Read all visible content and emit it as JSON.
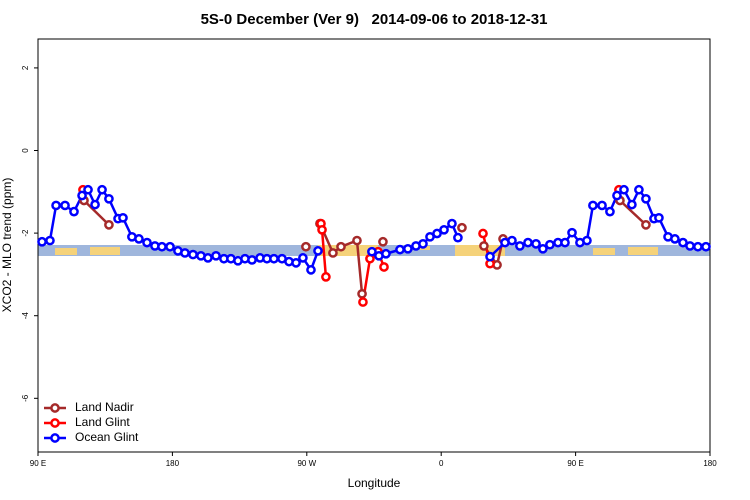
{
  "chart_data": {
    "type": "line",
    "title": "5S-0 December (Ver 9)   2014-09-06 to 2018-12-31",
    "x_label": "Longitude",
    "y_label": "XCO2 - MLO trend (ppm)",
    "xlim": [
      -270,
      180
    ],
    "xticks": [
      {
        "value": -270,
        "label": "90 E"
      },
      {
        "value": -180,
        "label": "180"
      },
      {
        "value": -90,
        "label": "90 W"
      },
      0,
      {
        "value": 90,
        "label": "90 E"
      },
      {
        "value": 180,
        "label": "180"
      }
    ],
    "ylim": [
      -7.3,
      2.7
    ],
    "yticks": [
      2,
      0,
      -2,
      -4,
      -6
    ],
    "legend": "bottom-left",
    "series": [
      {
        "name": "Land Nadir",
        "color": "#a52a2a",
        "x": [
          -239.2,
          -222.5,
          null,
          -90.6,
          null,
          -81.2,
          -72.5,
          -67.1,
          -56.4,
          -53.0,
          null,
          -39.0,
          null,
          13.9,
          null,
          28.6,
          37.4,
          41.4,
          null,
          119.7,
          137.1
        ],
        "values": [
          -1.21,
          -1.8,
          null,
          -2.33,
          null,
          -1.77,
          -2.48,
          -2.33,
          -2.18,
          -3.47,
          null,
          -2.21,
          null,
          -1.87,
          null,
          -2.31,
          -2.77,
          -2.14,
          null,
          -1.21,
          -1.8
        ]
      },
      {
        "name": "Land Glint",
        "color": "#ff0000",
        "x": [
          -239.9,
          null,
          -80.5,
          -79.8,
          -77.2,
          null,
          -52.4,
          -47.7,
          -42.3,
          -38.3,
          null,
          28.0,
          32.7,
          null,
          119.0
        ],
        "values": [
          -0.95,
          null,
          -1.77,
          -1.92,
          -3.06,
          null,
          -3.67,
          -2.62,
          -2.45,
          -2.82,
          null,
          -2.01,
          -2.74,
          null,
          -0.95
        ]
      },
      {
        "name": "Ocean Glint",
        "color": "#0000ff",
        "x": [
          -267.3,
          -262.0,
          -257.9,
          -251.9,
          -245.9,
          -240.5,
          -236.5,
          -231.8,
          -227.1,
          -222.5,
          -216.4,
          -213.1,
          -207.1,
          -202.4,
          -197.0,
          -191.7,
          -187.0,
          -181.6,
          -176.3,
          -171.6,
          -166.2,
          -160.9,
          -156.2,
          -150.8,
          -145.5,
          -140.8,
          -136.1,
          -131.4,
          -126.7,
          -121.3,
          -116.7,
          -112.0,
          -106.6,
          -101.9,
          -97.2,
          -92.6,
          -87.2,
          -82.5,
          null,
          -46.4,
          -41.7,
          -37.0,
          -27.6,
          -22.3,
          -16.9,
          -12.2,
          -7.5,
          -2.8,
          1.9,
          7.2,
          11.2,
          null,
          32.7,
          42.7,
          47.4,
          52.7,
          58.1,
          63.5,
          68.1,
          72.8,
          78.2,
          82.9,
          87.6,
          92.9,
          97.6,
          101.6,
          107.7,
          113.0,
          117.7,
          122.4,
          127.7,
          132.4,
          137.1,
          142.5,
          145.8,
          151.9,
          156.5,
          161.9,
          166.6,
          171.9,
          177.3
        ],
        "values": [
          -2.21,
          -2.18,
          -1.33,
          -1.33,
          -1.48,
          -1.09,
          -0.95,
          -1.31,
          -0.95,
          -1.17,
          -1.65,
          -1.63,
          -2.09,
          -2.14,
          -2.23,
          -2.31,
          -2.33,
          -2.33,
          -2.43,
          -2.48,
          -2.52,
          -2.55,
          -2.6,
          -2.55,
          -2.62,
          -2.62,
          -2.67,
          -2.62,
          -2.65,
          -2.6,
          -2.62,
          -2.62,
          -2.62,
          -2.69,
          -2.72,
          -2.6,
          -2.89,
          -2.43,
          null,
          -2.45,
          -2.55,
          -2.5,
          -2.4,
          -2.38,
          -2.31,
          -2.26,
          -2.09,
          -2.01,
          -1.92,
          -1.77,
          -2.11,
          null,
          -2.57,
          -2.23,
          -2.18,
          -2.31,
          -2.23,
          -2.26,
          -2.38,
          -2.28,
          -2.23,
          -2.23,
          -1.99,
          -2.23,
          -2.18,
          -1.33,
          -1.33,
          -1.48,
          -1.09,
          -0.95,
          -1.31,
          -0.95,
          -1.17,
          -1.65,
          -1.63,
          -2.09,
          -2.14,
          -2.23,
          -2.31,
          -2.33,
          -2.33
        ]
      }
    ]
  }
}
